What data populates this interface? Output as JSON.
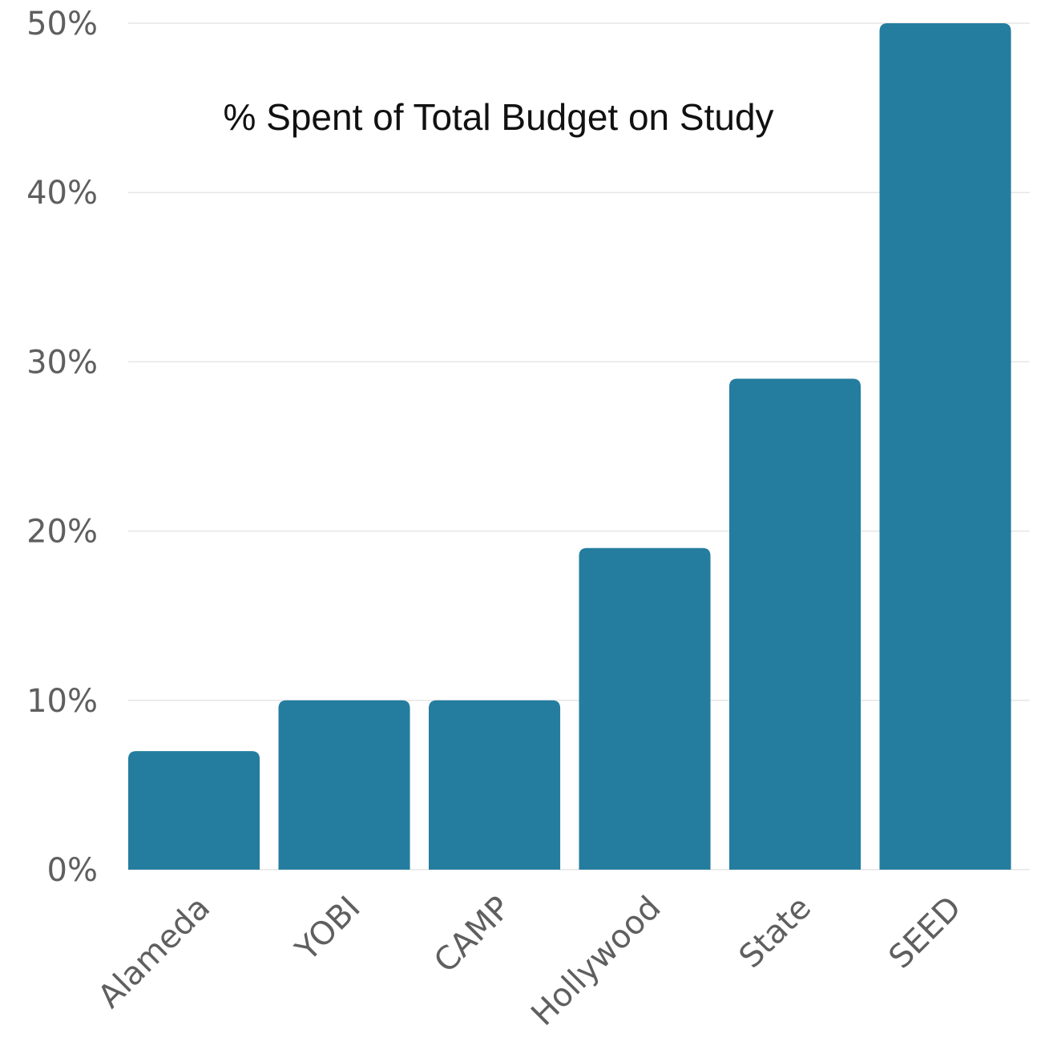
{
  "chart_data": {
    "type": "bar",
    "title": "% Spent of Total Budget on Study",
    "xlabel": "",
    "ylabel": "",
    "categories": [
      "Alameda",
      "YOBI",
      "CAMP",
      "Hollywood",
      "State",
      "SEED"
    ],
    "values": [
      7,
      10,
      10,
      19,
      29,
      50
    ],
    "ylim": [
      0,
      50
    ],
    "yticks": [
      0,
      10,
      20,
      30,
      40,
      50
    ],
    "ytick_labels": [
      "0%",
      "10%",
      "20%",
      "30%",
      "40%",
      "50%"
    ],
    "grid": true,
    "legend": "none",
    "bar_color": "#247d9f"
  }
}
